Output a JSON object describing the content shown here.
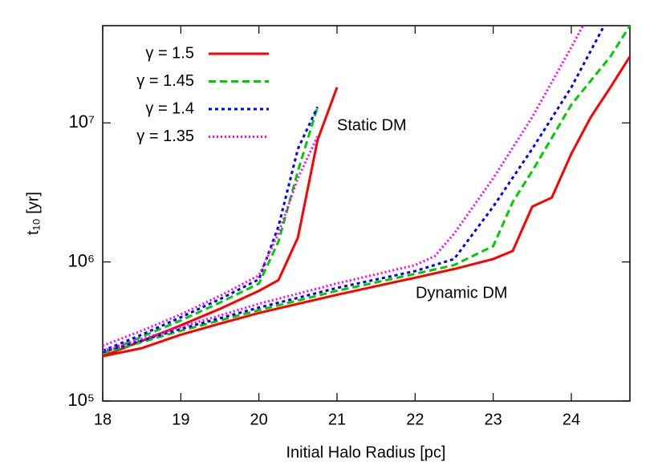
{
  "chart_data": {
    "type": "line",
    "x_label": "Initial Halo Radius [pc]",
    "y_label": "t₁₀ [yr]",
    "annotations": [
      "Static DM",
      "Dynamic DM"
    ],
    "xlim": [
      18,
      24.75
    ],
    "xticks": [
      18,
      19,
      20,
      21,
      22,
      23,
      24
    ],
    "ylim": [
      100000,
      50000000
    ],
    "yscale": "log",
    "yticks": [
      {
        "value": 100000,
        "label": "10⁵"
      },
      {
        "value": 1000000,
        "label": "10⁶"
      },
      {
        "value": 10000000,
        "label": "10⁷"
      }
    ],
    "legend": "upper-left",
    "series": [
      {
        "name": "γ = 1.5",
        "color": "#ff0000",
        "dash": "solid",
        "static_x": [
          18,
          18.5,
          19,
          19.5,
          20,
          20.25,
          20.5,
          20.75,
          21
        ],
        "static_values": [
          210000,
          270000,
          350000,
          460000,
          620000,
          740000,
          1500000,
          7500000,
          18000000
        ],
        "dynamic_x": [
          18,
          18.5,
          19,
          19.5,
          20,
          20.5,
          21,
          21.5,
          22,
          22.5,
          23,
          23.25,
          23.5,
          23.75,
          24,
          24.25,
          24.5,
          24.75
        ],
        "dynamic_values": [
          210000,
          240000,
          300000,
          360000,
          430000,
          500000,
          580000,
          670000,
          770000,
          890000,
          1050000,
          1200000,
          2500000,
          2900000,
          6000000,
          11000000,
          18000000,
          30000000
        ]
      },
      {
        "name": "γ = 1.45",
        "color": "#00cc00",
        "dash": "dashed",
        "static_x": [
          18,
          18.5,
          19,
          19.5,
          20,
          20.25,
          20.5,
          20.75
        ],
        "static_values": [
          220000,
          290000,
          380000,
          510000,
          700000,
          1400000,
          4500000,
          13000000
        ],
        "dynamic_x": [
          18,
          19,
          20,
          21,
          22,
          22.5,
          23,
          23.25,
          23.5,
          24,
          24.5,
          24.75
        ],
        "dynamic_values": [
          220000,
          320000,
          450000,
          620000,
          820000,
          950000,
          1300000,
          2700000,
          4500000,
          13500000,
          30000000,
          50000000
        ]
      },
      {
        "name": "γ = 1.4",
        "color": "#0000ff",
        "dash": "dotted",
        "static_x": [
          18,
          18.5,
          19,
          19.5,
          20,
          20.25,
          20.5,
          20.75
        ],
        "static_values": [
          230000,
          300000,
          400000,
          540000,
          750000,
          1800000,
          6500000,
          13000000
        ],
        "dynamic_x": [
          18,
          19,
          20,
          21,
          22,
          22.5,
          23,
          23.5,
          24,
          24.42
        ],
        "dynamic_values": [
          225000,
          330000,
          470000,
          650000,
          860000,
          1050000,
          2500000,
          6500000,
          18000000,
          50000000
        ]
      },
      {
        "name": "γ = 1.35",
        "color": "#ff00ff",
        "dash": "fine-dotted",
        "static_x": [
          18,
          18.5,
          19,
          19.5,
          20,
          20.25,
          20.5,
          20.75
        ],
        "static_values": [
          250000,
          320000,
          420000,
          570000,
          800000,
          1600000,
          4000000,
          8000000
        ],
        "dynamic_x": [
          18,
          19,
          20,
          21,
          22,
          22.25,
          22.5,
          23,
          23.5,
          24,
          24.15
        ],
        "dynamic_values": [
          230000,
          340000,
          500000,
          700000,
          950000,
          1100000,
          1600000,
          4000000,
          11000000,
          35000000,
          50000000
        ]
      }
    ]
  }
}
